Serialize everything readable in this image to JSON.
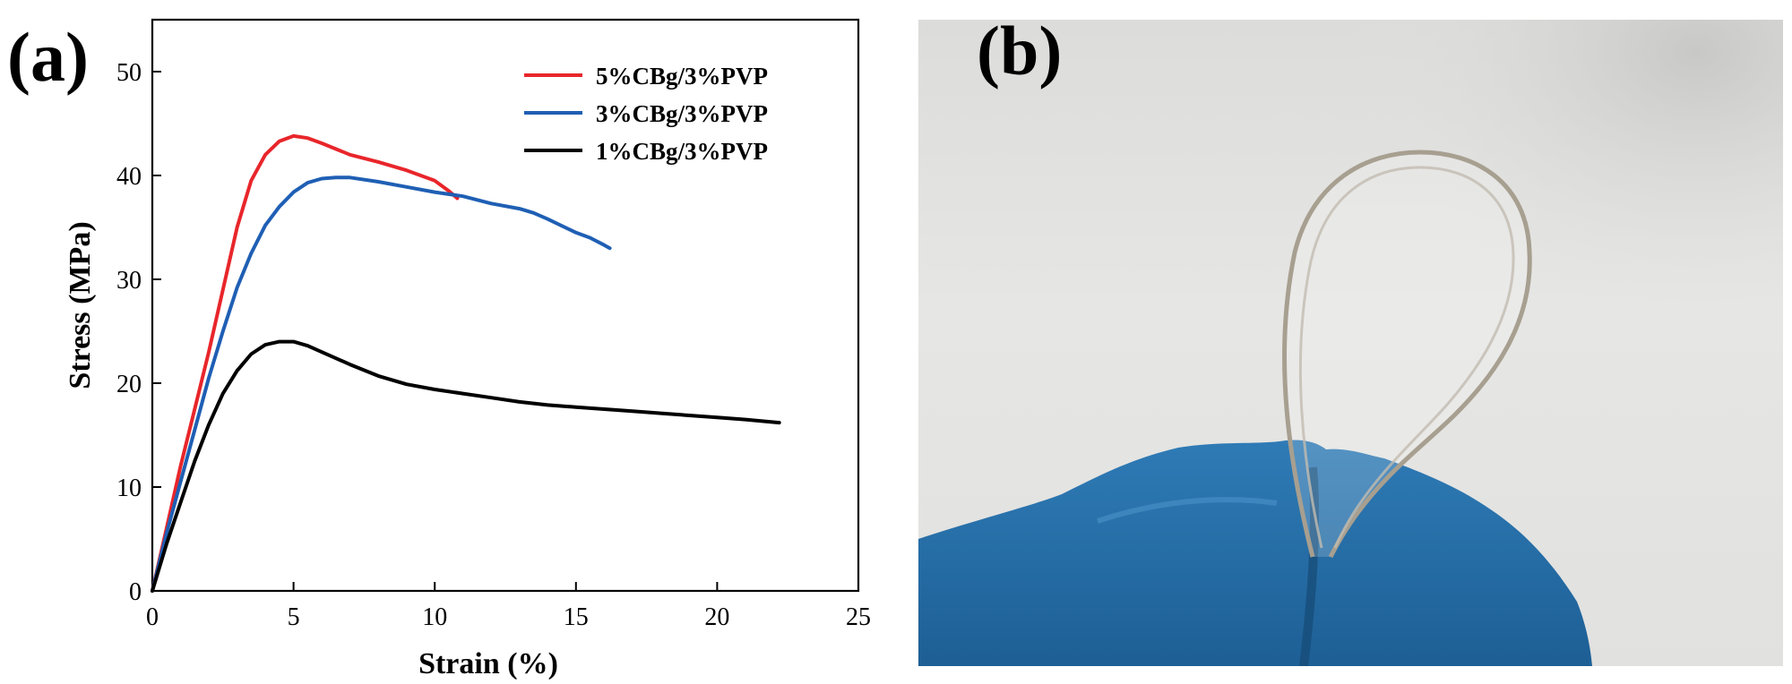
{
  "panel_a_label": "(a)",
  "panel_b_label": "(b)",
  "chart_data": {
    "type": "line",
    "xlabel": "Strain (%)",
    "ylabel": "Stress (MPa)",
    "xlim": [
      0,
      25
    ],
    "ylim": [
      0,
      55
    ],
    "xticks": [
      0,
      5,
      10,
      15,
      20,
      25
    ],
    "yticks": [
      0,
      10,
      20,
      30,
      40,
      50
    ],
    "grid": false,
    "legend_position": "top-right",
    "series": [
      {
        "name": "5%CBg/3%PVP",
        "color": "#e8262b",
        "x": [
          0,
          0.5,
          1,
          1.5,
          2,
          2.5,
          3,
          3.5,
          4,
          4.5,
          5,
          5.5,
          6,
          7,
          8,
          9,
          10,
          10.5,
          10.8
        ],
        "y": [
          0,
          6,
          12,
          17.5,
          23,
          29,
          35,
          39.5,
          42,
          43.3,
          43.8,
          43.6,
          43.1,
          42,
          41.3,
          40.5,
          39.5,
          38.5,
          37.8
        ]
      },
      {
        "name": "3%CBg/3%PVP",
        "color": "#1f5fb4",
        "x": [
          0,
          0.5,
          1,
          1.5,
          2,
          2.5,
          3,
          3.5,
          4,
          4.5,
          5,
          5.5,
          6,
          6.5,
          7,
          8,
          9,
          10,
          11,
          12,
          13,
          13.5,
          14,
          15,
          15.5,
          16,
          16.2
        ],
        "y": [
          0,
          5.5,
          10.5,
          15.5,
          20.5,
          25,
          29.2,
          32.5,
          35.2,
          37,
          38.4,
          39.3,
          39.7,
          39.8,
          39.8,
          39.4,
          38.9,
          38.4,
          38,
          37.3,
          36.8,
          36.4,
          35.8,
          34.5,
          34,
          33.3,
          33
        ]
      },
      {
        "name": "1%CBg/3%PVP",
        "color": "#000000",
        "x": [
          0,
          0.5,
          1,
          1.5,
          2,
          2.5,
          3,
          3.5,
          4,
          4.5,
          5,
          5.5,
          6,
          7,
          8,
          9,
          10,
          11,
          12,
          13,
          14,
          15,
          16,
          17,
          18,
          19,
          20,
          21,
          22.2
        ],
        "y": [
          0,
          4.5,
          8.5,
          12.5,
          16,
          19,
          21.2,
          22.8,
          23.7,
          24,
          24,
          23.6,
          23,
          21.8,
          20.7,
          19.9,
          19.4,
          19,
          18.6,
          18.2,
          17.9,
          17.7,
          17.5,
          17.3,
          17.1,
          16.9,
          16.7,
          16.5,
          16.2
        ]
      }
    ]
  }
}
